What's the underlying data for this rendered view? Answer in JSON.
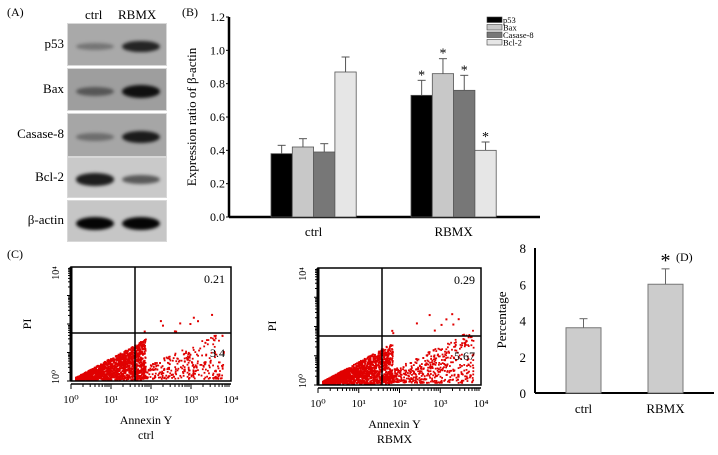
{
  "panels": {
    "A": {
      "label": "(A)",
      "lanes": [
        "ctrl",
        "RBMX"
      ],
      "rows": [
        {
          "name": "p53",
          "bg": "#a9a9a9",
          "ctrl": 0.35,
          "rbmx": 0.85
        },
        {
          "name": "Bax",
          "bg": "#9e9e9e",
          "ctrl": 0.55,
          "rbmx": 0.95
        },
        {
          "name": "Casase-8",
          "bg": "#a6a6a6",
          "ctrl": 0.4,
          "rbmx": 0.9
        },
        {
          "name": "Bcl-2",
          "bg": "#c9c9c9",
          "ctrl": 0.9,
          "rbmx": 0.6
        },
        {
          "name": "β-actin",
          "bg": "#c6c6c6",
          "ctrl": 1.0,
          "rbmx": 1.0
        }
      ]
    },
    "B": {
      "label": "(B)"
    },
    "C": {
      "label": "(C)",
      "plots": [
        {
          "group": "ctrl",
          "ur": "0.21",
          "lr": "3.4",
          "xlabel": "Annexin Y",
          "ylabel": "PI"
        },
        {
          "group": "RBMX",
          "ur": "0.29",
          "lr": "5.67",
          "xlabel": "Annexin Y",
          "ylabel": "PI"
        }
      ],
      "x_ticks": [
        "10⁰",
        "10¹",
        "10²",
        "10³",
        "10⁴"
      ],
      "y_ticks": [
        "10⁰",
        "10⁴"
      ],
      "dot_color": "#e00000"
    },
    "D": {
      "label": "(D)"
    }
  },
  "chart_data": [
    {
      "type": "bar",
      "panel": "B",
      "title": "",
      "xlabel": "",
      "ylabel": "Expression ratio of β-actin",
      "categories": [
        "ctrl",
        "RBMX"
      ],
      "ylim": [
        0,
        1.2
      ],
      "yticks": [
        "0.0",
        "0.2",
        "0.4",
        "0.6",
        "0.8",
        "1.0",
        "1.2"
      ],
      "legend_position": "top-right",
      "series": [
        {
          "name": "p53",
          "color": "#000000",
          "values": [
            0.38,
            0.73
          ],
          "errors": [
            0.05,
            0.09
          ],
          "significant": [
            false,
            true
          ]
        },
        {
          "name": "Bax",
          "color": "#c8c8c8",
          "values": [
            0.42,
            0.86
          ],
          "errors": [
            0.05,
            0.09
          ],
          "significant": [
            false,
            true
          ]
        },
        {
          "name": "Casase-8",
          "color": "#777777",
          "values": [
            0.39,
            0.76
          ],
          "errors": [
            0.05,
            0.09
          ],
          "significant": [
            false,
            true
          ]
        },
        {
          "name": "Bcl-2",
          "color": "#e6e6e6",
          "values": [
            0.87,
            0.4
          ],
          "errors": [
            0.09,
            0.05
          ],
          "significant": [
            false,
            true
          ]
        }
      ],
      "significance_marker": "*"
    },
    {
      "type": "bar",
      "panel": "D",
      "title": "",
      "xlabel": "",
      "ylabel": "Percentage",
      "categories": [
        "ctrl",
        "RBMX"
      ],
      "values": [
        3.6,
        6.0
      ],
      "errors": [
        0.5,
        0.85
      ],
      "significant": [
        false,
        true
      ],
      "significance_marker": "*",
      "ylim": [
        0,
        8
      ],
      "yticks": [
        "0",
        "2",
        "4",
        "6",
        "8"
      ],
      "color": "#cccccc"
    }
  ]
}
